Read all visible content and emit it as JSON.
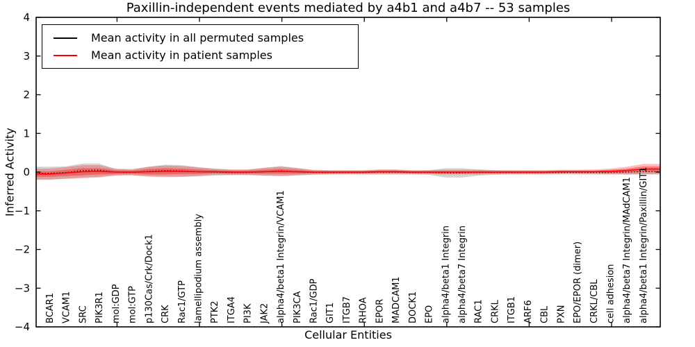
{
  "chart_data": {
    "type": "line",
    "title": "Paxillin-independent events mediated by a4b1 and a4b7 -- 53 samples",
    "xlabel": "Cellular Entities",
    "ylabel": "Inferred Activity",
    "ylim": [
      -4,
      4
    ],
    "yticks": [
      4,
      3,
      2,
      1,
      0,
      -1,
      -2,
      -3,
      -4
    ],
    "grid": false,
    "legend_position": "upper left",
    "categories": [
      "BCAR1",
      "VCAM1",
      "SRC",
      "PIK3R1",
      "mol:GDP",
      "mol:GTP",
      "p130Cas/Crk/Dock1",
      "CRK",
      "Rac1/GTP",
      "lamellipodium assembly",
      "PTK2",
      "ITGA4",
      "PI3K",
      "JAK2",
      "alpha4/beta1 Integrin/VCAM1",
      "PIK3CA",
      "Rac1/GDP",
      "GIT1",
      "ITGB7",
      "RHOA",
      "EPOR",
      "MADCAM1",
      "DOCK1",
      "EPO",
      "alpha4/beta1 Integrin",
      "alpha4/beta7 Integrin",
      "RAC1",
      "CRKL",
      "ITGB1",
      "ARF6",
      "CBL",
      "PXN",
      "EPO/EPOR (dimer)",
      "CRKL/CBL",
      "cell adhesion",
      "alpha4/beta7 Integrin/MAdCAM1",
      "alpha4/beta1 Integrin/Paxillin/GIT1"
    ],
    "series": [
      {
        "name": "Mean activity in all permuted samples",
        "color": "#000000",
        "line_style": "dotted",
        "band_color": "#808080",
        "values": [
          -0.03,
          -0.01,
          0.04,
          0.05,
          0.0,
          -0.01,
          0.02,
          0.04,
          0.03,
          0.01,
          0.0,
          -0.01,
          -0.01,
          0.01,
          0.03,
          0.01,
          -0.01,
          -0.01,
          -0.01,
          -0.01,
          0.0,
          0.0,
          -0.01,
          -0.01,
          -0.02,
          -0.02,
          -0.01,
          -0.01,
          -0.01,
          -0.01,
          -0.01,
          -0.01,
          -0.01,
          -0.01,
          -0.01,
          0.0,
          0.01
        ],
        "band_halfwidth": [
          0.17,
          0.16,
          0.18,
          0.17,
          0.08,
          0.07,
          0.12,
          0.15,
          0.15,
          0.12,
          0.09,
          0.07,
          0.07,
          0.1,
          0.13,
          0.1,
          0.06,
          0.05,
          0.05,
          0.05,
          0.06,
          0.06,
          0.05,
          0.06,
          0.12,
          0.12,
          0.08,
          0.06,
          0.05,
          0.05,
          0.05,
          0.05,
          0.05,
          0.05,
          0.05,
          0.06,
          0.07
        ]
      },
      {
        "name": "Mean activity in patient samples",
        "color": "#ff0000",
        "line_style": "solid",
        "band_color": "#ff0000",
        "values": [
          -0.05,
          -0.02,
          0.01,
          0.02,
          0.0,
          0.0,
          0.01,
          0.02,
          0.02,
          0.01,
          0.01,
          0.0,
          0.0,
          0.01,
          0.02,
          0.01,
          0.0,
          0.0,
          0.0,
          0.0,
          0.01,
          0.01,
          0.0,
          0.0,
          0.0,
          0.0,
          0.0,
          0.0,
          0.0,
          0.0,
          0.0,
          0.01,
          0.01,
          0.01,
          0.02,
          0.04,
          0.08
        ],
        "band_outer_halfwidth": [
          0.14,
          0.15,
          0.17,
          0.16,
          0.09,
          0.08,
          0.13,
          0.15,
          0.14,
          0.11,
          0.08,
          0.07,
          0.07,
          0.1,
          0.12,
          0.09,
          0.06,
          0.05,
          0.05,
          0.05,
          0.06,
          0.06,
          0.05,
          0.05,
          0.06,
          0.06,
          0.06,
          0.05,
          0.05,
          0.05,
          0.05,
          0.05,
          0.05,
          0.06,
          0.07,
          0.1,
          0.13
        ],
        "band_inner_halfwidth": [
          0.07,
          0.08,
          0.09,
          0.08,
          0.05,
          0.04,
          0.07,
          0.08,
          0.07,
          0.06,
          0.04,
          0.04,
          0.04,
          0.05,
          0.06,
          0.05,
          0.03,
          0.03,
          0.03,
          0.03,
          0.03,
          0.03,
          0.03,
          0.03,
          0.03,
          0.03,
          0.03,
          0.03,
          0.03,
          0.03,
          0.03,
          0.03,
          0.03,
          0.03,
          0.04,
          0.05,
          0.07
        ]
      }
    ]
  }
}
